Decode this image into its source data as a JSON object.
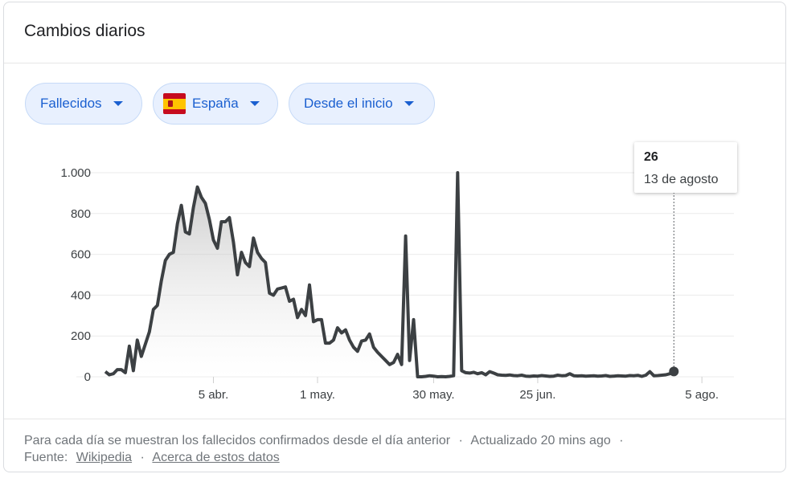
{
  "header": {
    "title": "Cambios diarios"
  },
  "filters": {
    "metric": "Fallecidos",
    "country": "España",
    "range": "Desde el inicio"
  },
  "tooltip": {
    "value": "26",
    "date": "13 de agosto"
  },
  "footer": {
    "description": "Para cada día se muestran los fallecidos confirmados desde el día anterior",
    "updated": "Actualizado 20 mins ago",
    "source_label": "Fuente:",
    "source_link": "Wikipedia",
    "about_link": "Acerca de estos datos"
  },
  "colors": {
    "line": "#3c4043",
    "accent": "#1a5fd0",
    "chip_bg": "#e8f0fe"
  },
  "chart_data": {
    "type": "area",
    "ylim": [
      0,
      1000
    ],
    "y_ticks": [
      0,
      200,
      400,
      600,
      800,
      1000
    ],
    "y_tick_labels": [
      "0",
      "200",
      "400",
      "600",
      "800",
      "1.000"
    ],
    "x_tick_labels": [
      "5 abr.",
      "1 may.",
      "30 may.",
      "25 jun.",
      "5 ago."
    ],
    "x_tick_days": [
      0,
      26,
      55,
      81,
      122
    ],
    "x_range_days": [
      -27,
      130
    ],
    "values": [
      [
        -27,
        25
      ],
      [
        -26,
        10
      ],
      [
        -25,
        15
      ],
      [
        -24,
        35
      ],
      [
        -23,
        35
      ],
      [
        -22,
        20
      ],
      [
        -21,
        150
      ],
      [
        -20,
        30
      ],
      [
        -19,
        180
      ],
      [
        -18,
        100
      ],
      [
        -17,
        160
      ],
      [
        -16,
        220
      ],
      [
        -15,
        330
      ],
      [
        -14,
        350
      ],
      [
        -13,
        470
      ],
      [
        -12,
        570
      ],
      [
        -11,
        600
      ],
      [
        -10,
        610
      ],
      [
        -9,
        750
      ],
      [
        -8,
        840
      ],
      [
        -7,
        710
      ],
      [
        -6,
        700
      ],
      [
        -5,
        830
      ],
      [
        -4,
        930
      ],
      [
        -3,
        880
      ],
      [
        -2,
        850
      ],
      [
        -1,
        770
      ],
      [
        0,
        670
      ],
      [
        1,
        630
      ],
      [
        2,
        760
      ],
      [
        3,
        760
      ],
      [
        4,
        780
      ],
      [
        5,
        660
      ],
      [
        6,
        500
      ],
      [
        7,
        610
      ],
      [
        8,
        560
      ],
      [
        9,
        540
      ],
      [
        10,
        680
      ],
      [
        11,
        610
      ],
      [
        12,
        580
      ],
      [
        13,
        560
      ],
      [
        14,
        410
      ],
      [
        15,
        400
      ],
      [
        16,
        430
      ],
      [
        17,
        435
      ],
      [
        18,
        440
      ],
      [
        19,
        370
      ],
      [
        20,
        380
      ],
      [
        21,
        290
      ],
      [
        22,
        330
      ],
      [
        23,
        300
      ],
      [
        24,
        450
      ],
      [
        25,
        270
      ],
      [
        26,
        280
      ],
      [
        27,
        280
      ],
      [
        28,
        165
      ],
      [
        29,
        165
      ],
      [
        30,
        180
      ],
      [
        31,
        240
      ],
      [
        32,
        215
      ],
      [
        33,
        230
      ],
      [
        34,
        180
      ],
      [
        35,
        145
      ],
      [
        36,
        125
      ],
      [
        37,
        175
      ],
      [
        38,
        180
      ],
      [
        39,
        210
      ],
      [
        40,
        145
      ],
      [
        41,
        120
      ],
      [
        42,
        100
      ],
      [
        43,
        80
      ],
      [
        44,
        60
      ],
      [
        45,
        70
      ],
      [
        46,
        110
      ],
      [
        47,
        60
      ],
      [
        48,
        690
      ],
      [
        49,
        80
      ],
      [
        50,
        280
      ],
      [
        51,
        0
      ],
      [
        52,
        0
      ],
      [
        53,
        2
      ],
      [
        54,
        5
      ],
      [
        55,
        3
      ],
      [
        56,
        0
      ],
      [
        57,
        1
      ],
      [
        58,
        0
      ],
      [
        59,
        2
      ],
      [
        60,
        5
      ],
      [
        61,
        1000
      ],
      [
        62,
        30
      ],
      [
        63,
        20
      ],
      [
        64,
        18
      ],
      [
        65,
        22
      ],
      [
        66,
        15
      ],
      [
        67,
        20
      ],
      [
        68,
        10
      ],
      [
        69,
        25
      ],
      [
        70,
        18
      ],
      [
        71,
        10
      ],
      [
        72,
        8
      ],
      [
        73,
        7
      ],
      [
        74,
        9
      ],
      [
        75,
        6
      ],
      [
        76,
        5
      ],
      [
        77,
        8
      ],
      [
        78,
        3
      ],
      [
        79,
        2
      ],
      [
        80,
        4
      ],
      [
        81,
        3
      ],
      [
        82,
        6
      ],
      [
        83,
        4
      ],
      [
        84,
        2
      ],
      [
        85,
        3
      ],
      [
        86,
        8
      ],
      [
        87,
        5
      ],
      [
        88,
        6
      ],
      [
        89,
        15
      ],
      [
        90,
        5
      ],
      [
        91,
        4
      ],
      [
        92,
        5
      ],
      [
        93,
        3
      ],
      [
        94,
        4
      ],
      [
        95,
        5
      ],
      [
        96,
        3
      ],
      [
        97,
        4
      ],
      [
        98,
        6
      ],
      [
        99,
        2
      ],
      [
        100,
        3
      ],
      [
        101,
        5
      ],
      [
        102,
        4
      ],
      [
        103,
        3
      ],
      [
        104,
        6
      ],
      [
        105,
        5
      ],
      [
        106,
        7
      ],
      [
        107,
        2
      ],
      [
        108,
        8
      ],
      [
        109,
        25
      ],
      [
        110,
        5
      ],
      [
        111,
        6
      ],
      [
        112,
        8
      ],
      [
        113,
        10
      ],
      [
        114,
        15
      ],
      [
        115,
        26
      ]
    ]
  }
}
